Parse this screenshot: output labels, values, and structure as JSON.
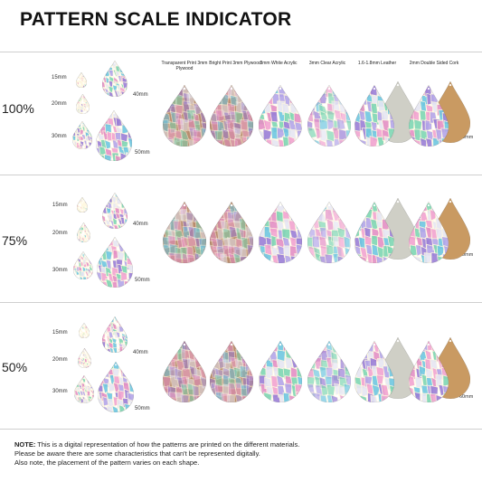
{
  "title": "PATTERN SCALE INDICATOR",
  "materials": [
    "Transparent Print 3mm Plywood",
    "Bright Print 3mm Plywood",
    "3mm White Acrylic",
    "3mm Clear Acrylic",
    "1.6-1.8mm Leather",
    "2mm Double Sided Cork"
  ],
  "rows": [
    {
      "scale": "100%",
      "sizes": [
        "15mm",
        "20mm",
        "30mm"
      ],
      "large_sizes": [
        "40mm",
        "50mm"
      ],
      "dimension": "60mm"
    },
    {
      "scale": "75%",
      "sizes": [
        "15mm",
        "20mm",
        "30mm"
      ],
      "large_sizes": [
        "40mm",
        "50mm"
      ],
      "dimension": "60mm"
    },
    {
      "scale": "50%",
      "sizes": [
        "15mm",
        "20mm",
        "30mm"
      ],
      "large_sizes": [
        "40mm",
        "50mm"
      ],
      "dimension": "60mm"
    }
  ],
  "note": {
    "label": "NOTE:",
    "line1": " This is a digital representation of how the patterns are printed on the different materials.",
    "line2": "Please be aware there are some characteristics that can't be represented digitally.",
    "line3": "Also note, the placement of the pattern varies on each shape."
  },
  "colors": {
    "plywood": "#b98c6f",
    "leather": "#cfcfc6",
    "cork": "#c99a62",
    "pattern": [
      "#e48fc5",
      "#9b7fd6",
      "#7fd6b3",
      "#f2a4d0",
      "#b4a6e8",
      "#e6e6f2",
      "#6fc7e0"
    ]
  }
}
